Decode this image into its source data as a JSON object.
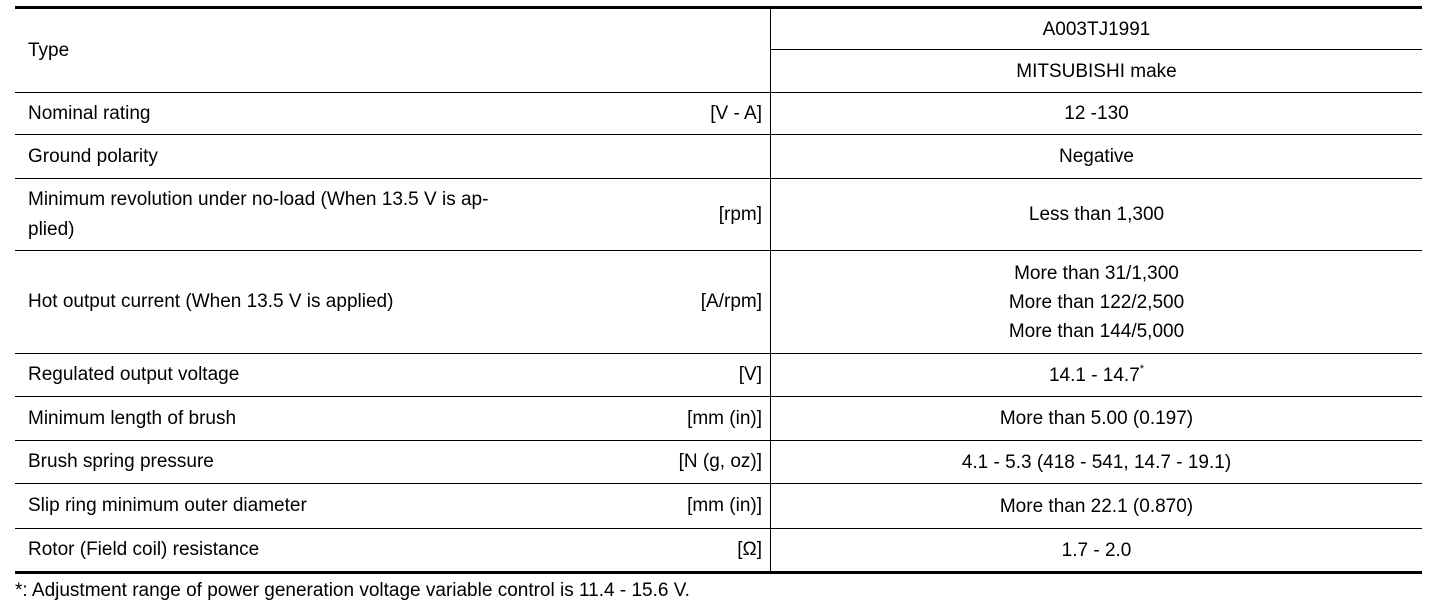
{
  "table": {
    "header": {
      "label": "Type",
      "values": [
        "A003TJ1991",
        "MITSUBISHI make"
      ]
    },
    "rows": [
      {
        "label": [
          "Nominal rating"
        ],
        "unit": "[V - A]",
        "value": [
          "12 -130"
        ]
      },
      {
        "label": [
          "Ground polarity"
        ],
        "value": [
          "Negative"
        ]
      },
      {
        "label": [
          "Minimum revolution under no-load (When 13.5 V is ap-",
          "plied)"
        ],
        "unit": "[rpm]",
        "value": [
          "Less than 1,300"
        ]
      },
      {
        "label": [
          "Hot output current (When 13.5 V is applied)"
        ],
        "unit": "[A/rpm]",
        "value": [
          "More than 31/1,300",
          "More than 122/2,500",
          "More than 144/5,000"
        ]
      },
      {
        "label": [
          "Regulated output voltage"
        ],
        "unit": "[V]",
        "value": [
          "14.1 - 14.7"
        ],
        "note": "*"
      },
      {
        "label": [
          "Minimum length of brush"
        ],
        "unit": "[mm (in)]",
        "value": [
          "More than 5.00 (0.197)"
        ]
      },
      {
        "label": [
          "Brush spring pressure"
        ],
        "unit": "[N (g, oz)]",
        "value": [
          "4.1 - 5.3 (418 - 541, 14.7 - 19.1)"
        ]
      },
      {
        "label": [
          "Slip ring minimum outer diameter"
        ],
        "unit": "[mm (in)]",
        "value": [
          "More than 22.1 (0.870)"
        ]
      },
      {
        "label": [
          "Rotor (Field coil) resistance"
        ],
        "unit": "[Ω]",
        "value": [
          "1.7 - 2.0"
        ]
      }
    ]
  },
  "footnote": "*: Adjustment range of power generation voltage variable control is 11.4 - 15.6 V."
}
